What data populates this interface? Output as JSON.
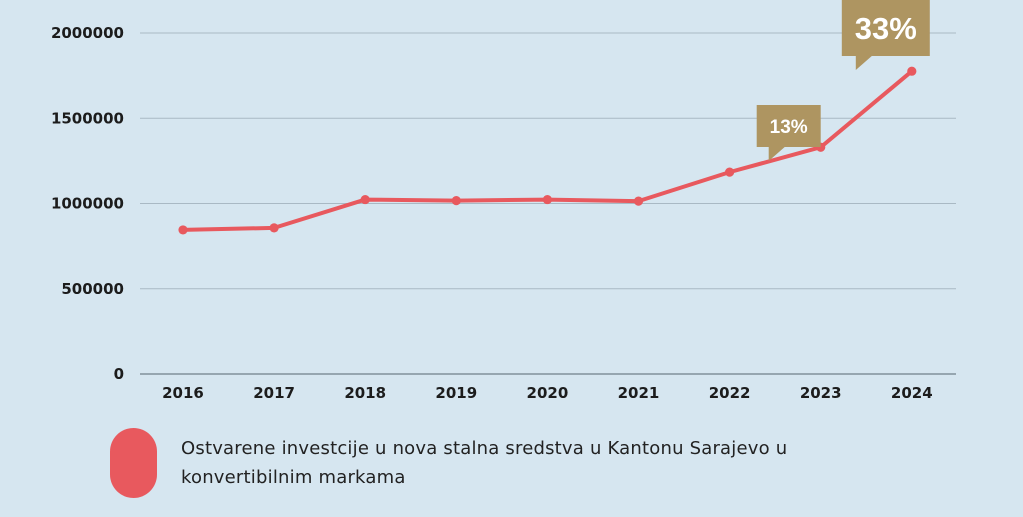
{
  "chart_data": {
    "type": "line",
    "categories": [
      "2016",
      "2017",
      "2018",
      "2019",
      "2020",
      "2021",
      "2022",
      "2023",
      "2024"
    ],
    "series": [
      {
        "name": "Ostvarene investcije u nova stalna sredstva u Kantonu Sarajevo u konvertibilnim markama",
        "color": "#e8595e",
        "values": [
          845000,
          857000,
          1023000,
          1017000,
          1023000,
          1014000,
          1184000,
          1330000,
          1776000
        ]
      }
    ],
    "ylim": [
      0,
      2000000
    ],
    "yticks": [
      "0",
      "500000",
      "1000000",
      "1500000",
      "2000000"
    ],
    "grid": true,
    "legend_position": "bottom-left",
    "annotations": [
      {
        "label": "13%",
        "category": "2023",
        "value": 1330000,
        "color": "#ae9561"
      },
      {
        "label": "33%",
        "category": "2024",
        "value": 1776000,
        "color": "#ae9561"
      }
    ]
  }
}
